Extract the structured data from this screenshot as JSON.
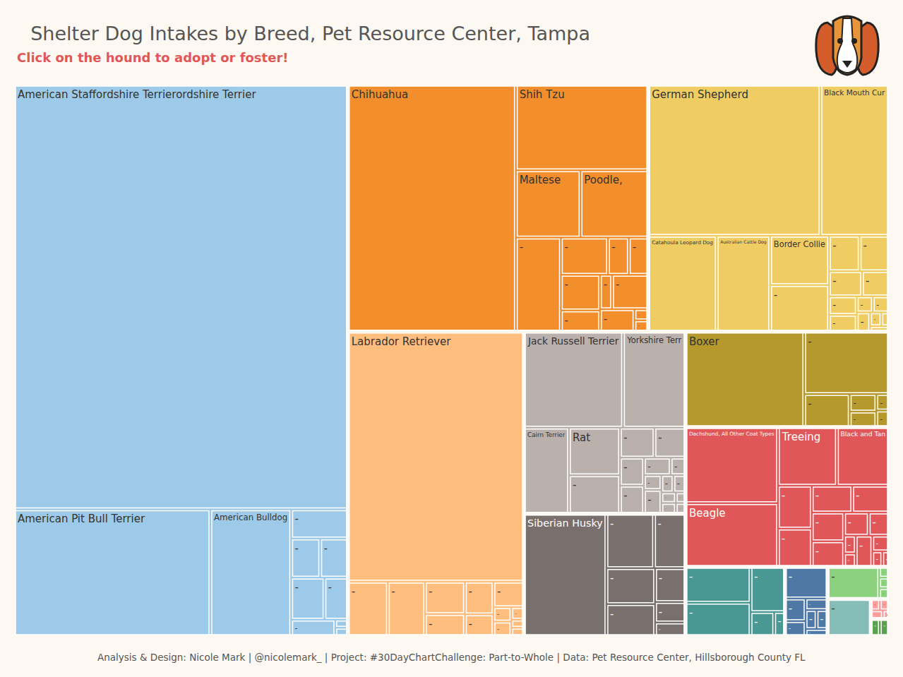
{
  "chart_data": {
    "type": "treemap",
    "title": "Shelter Dog Intakes by Breed, Pet Resource Center, Tampa",
    "subtitle": "Click on the hound to adopt or foster!",
    "annotations": [
      "Analysis & Design: Nicole Mark | @nicolemark_ | Project: #30DayChartChallenge: Part-to-Whole | Data: Pet Resource Center, Hillsborough County FL"
    ],
    "data_labels": true,
    "groups": [
      {
        "color": "#9ecae9",
        "categories": [
          "American Staffordshire Terrierordshire Terrier",
          "American Pit Bull Terrier",
          "American Bulldog",
          null,
          null,
          null,
          null,
          null,
          null,
          null,
          null
        ],
        "values": [
          2740,
          481,
          198,
          32,
          22,
          21,
          27,
          19,
          14,
          2,
          2
        ]
      },
      {
        "color": "#f28e2b",
        "categories": [
          "Chihuahua",
          "Shih Tzu",
          "Maltese",
          "Poodle,",
          null,
          null,
          null,
          null,
          null,
          null,
          null,
          null,
          null,
          null,
          null
        ],
        "values": [
          802,
          219,
          84,
          88,
          82,
          34,
          15,
          14,
          27,
          16,
          8,
          24,
          15,
          3,
          3
        ]
      },
      {
        "color": "#f0cd62",
        "categories": [
          "German Shepherd",
          "Black Mouth Cur",
          "Catahoula Leopard Dog",
          "Australian Cattle Dog",
          "Border Collie",
          null,
          null,
          null,
          null,
          null,
          null,
          null,
          null,
          null,
          null,
          null,
          null,
          null
        ],
        "values": [
          503,
          200,
          127,
          99,
          56,
          53,
          21,
          20,
          16,
          13,
          10,
          9,
          5,
          5,
          5,
          3,
          2,
          2
        ]
      },
      {
        "color": "#ffbe7d",
        "categories": [
          "Labrador Retriever",
          null,
          null,
          null,
          null,
          null,
          null,
          null,
          null,
          null,
          null,
          null,
          null
        ],
        "values": [
          851,
          42,
          39,
          25,
          17,
          18,
          12,
          15,
          5,
          5,
          3,
          2,
          2
        ]
      },
      {
        "color": "#bab0ac",
        "categories": [
          "Jack Russell Terrier",
          "Yorkshire Terr",
          "Cairn Terrier",
          "Rat",
          null,
          null,
          null,
          null,
          null,
          null,
          null,
          null,
          null,
          null,
          null,
          null,
          null,
          null,
          null
        ],
        "values": [
          184,
          116,
          75,
          47,
          38,
          20,
          18,
          13,
          13,
          9,
          5,
          5,
          8,
          4,
          4,
          3,
          3,
          2,
          2
        ]
      },
      {
        "color": "#79706e",
        "categories": [
          "Siberian Husky",
          null,
          null,
          null,
          null,
          null,
          null,
          null
        ],
        "values": [
          195,
          50,
          33,
          34,
          30,
          20,
          12,
          8
        ]
      },
      {
        "color": "#b6992d",
        "categories": [
          "Boxer",
          null,
          null,
          null,
          null,
          null,
          null
        ],
        "values": [
          219,
          102,
          29,
          9,
          8,
          4,
          4
        ]
      },
      {
        "color": "#e15759",
        "categories": [
          "Dachshund, All Other Coat Types",
          "Beagle",
          "Treeing",
          "Black and Tan",
          null,
          null,
          null,
          null,
          null,
          null,
          null,
          null,
          null,
          null,
          null,
          null,
          null,
          null
        ],
        "values": [
          136,
          114,
          67,
          59,
          28,
          25,
          21,
          19,
          18,
          16,
          11,
          9,
          4,
          3,
          10,
          5,
          3,
          2
        ]
      },
      {
        "color": "#499894",
        "categories": [
          null,
          null,
          null,
          null,
          null
        ],
        "values": [
          45,
          42,
          30,
          11,
          5
        ]
      },
      {
        "color": "#4e79a7",
        "categories": [
          null,
          null,
          null,
          null,
          null,
          null,
          null
        ],
        "values": [
          26,
          9,
          6,
          5,
          4,
          4,
          3
        ]
      },
      {
        "color": "#8cd17d",
        "categories": [
          null,
          null,
          null,
          null
        ],
        "values": [
          32,
          2,
          2,
          2
        ]
      },
      {
        "color": "#86bcb6",
        "categories": [
          null
        ],
        "values": [
          31
        ]
      },
      {
        "color": "#ff9d9a",
        "categories": [
          null,
          null,
          null,
          null
        ],
        "values": [
          2,
          2,
          2,
          1
        ]
      },
      {
        "color": "#59a14f",
        "categories": [
          null,
          null
        ],
        "values": [
          3,
          3
        ]
      }
    ]
  }
}
